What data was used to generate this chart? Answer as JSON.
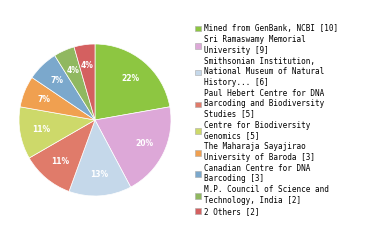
{
  "values": [
    10,
    9,
    6,
    5,
    5,
    3,
    3,
    2,
    2
  ],
  "colors": [
    "#8dc641",
    "#dda8d8",
    "#c5d8ea",
    "#e07b6a",
    "#cdd96a",
    "#f0a050",
    "#7ba8cc",
    "#90b860",
    "#d46060"
  ],
  "legend_labels": [
    "Mined from GenBank, NCBI [10]",
    "Sri Ramaswamy Memorial\nUniversity [9]",
    "Smithsonian Institution,\nNational Museum of Natural\nHistory... [6]",
    "Paul Hebert Centre for DNA\nBarcoding and Biodiversity\nStudies [5]",
    "Centre for Biodiversity\nGenomics [5]",
    "The Maharaja Sayajirao\nUniversity of Baroda [3]",
    "Canadian Centre for DNA\nBarcoding [3]",
    "M.P. Council of Science and\nTechnology, India [2]",
    "2 Others [2]"
  ],
  "startangle": 90,
  "font_size": 5.5,
  "legend_font_size": 5.5
}
